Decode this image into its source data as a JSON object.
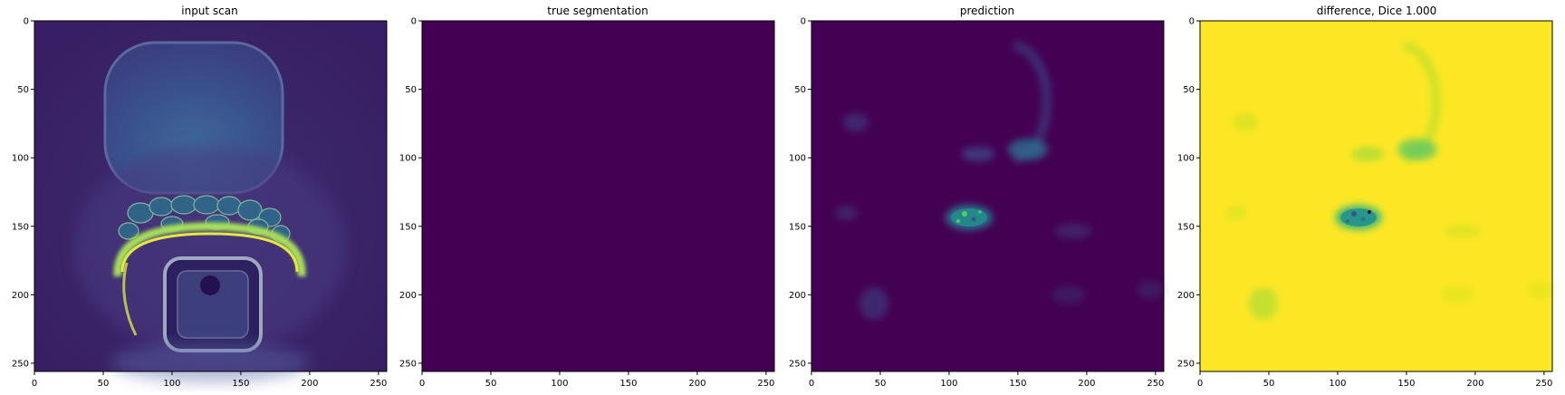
{
  "panels": [
    {
      "id": "input-scan",
      "title": "input scan",
      "background": "#3e2b6e",
      "xticks": [
        "0",
        "50",
        "100",
        "150",
        "200",
        "250"
      ],
      "yticks": [
        "0",
        "50",
        "100",
        "150",
        "200",
        "250"
      ]
    },
    {
      "id": "true-segmentation",
      "title": "true segmentation",
      "background": "#440154",
      "xticks": [
        "0",
        "50",
        "100",
        "150",
        "200",
        "250"
      ],
      "yticks": [
        "0",
        "50",
        "100",
        "150",
        "200",
        "250"
      ]
    },
    {
      "id": "prediction",
      "title": "prediction",
      "background": "#440154",
      "xticks": [
        "0",
        "50",
        "100",
        "150",
        "200",
        "250"
      ],
      "yticks": [
        "0",
        "50",
        "100",
        "150",
        "200",
        "250"
      ]
    },
    {
      "id": "difference",
      "title": "difference, Dice 1.000",
      "background": "#fde725",
      "xticks": [
        "0",
        "50",
        "100",
        "150",
        "200",
        "250"
      ],
      "yticks": [
        "0",
        "50",
        "100",
        "150",
        "200",
        "250"
      ]
    }
  ],
  "colors": {
    "viridis_dark": "#440154",
    "viridis_blue": "#3b528b",
    "viridis_teal": "#21918c",
    "viridis_green": "#5ec962",
    "viridis_yellow": "#fde725"
  }
}
